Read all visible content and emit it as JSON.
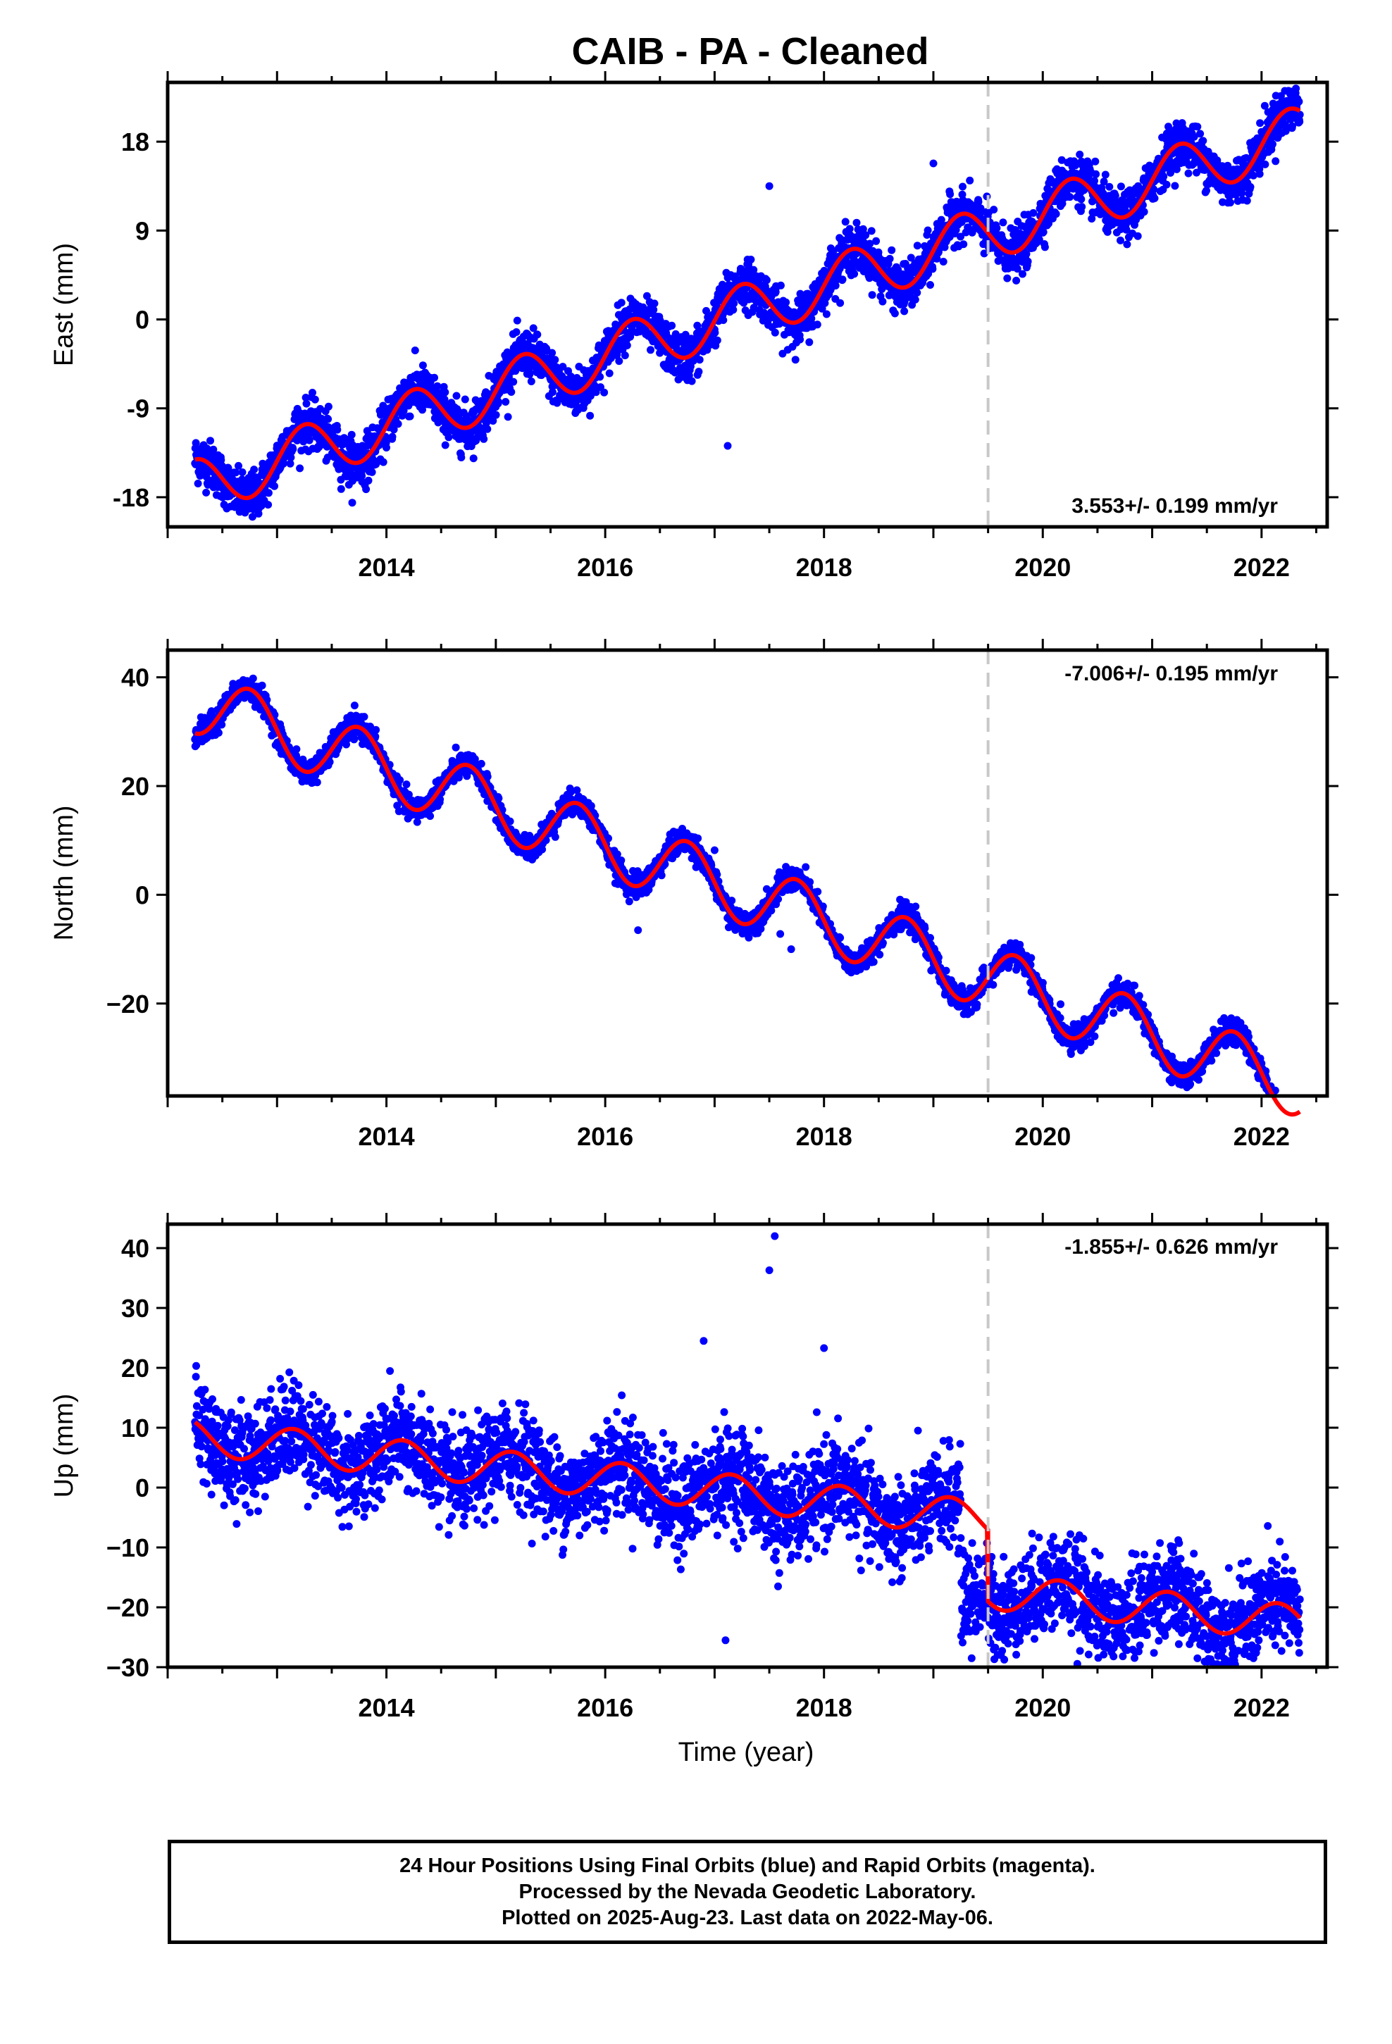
{
  "title": "CAIB  - PA - Cleaned",
  "footer": {
    "lines": [
      "24 Hour Positions Using Final Orbits (blue) and Rapid Orbits (magenta).",
      "Processed by the Nevada Geodetic Laboratory.",
      "Plotted on 2025-Aug-23. Last data on 2022-May-06."
    ]
  },
  "chart_data": [
    {
      "type": "scatter",
      "name": "east",
      "ylabel": "East (mm)",
      "xlim": [
        2012.0,
        2022.6
      ],
      "ylim": [
        -21,
        24
      ],
      "yticks": [
        "18",
        "9",
        "0",
        "-9",
        "-18"
      ],
      "ytick_values": [
        18,
        9,
        0,
        -9,
        -18
      ],
      "xticks": [
        "2014",
        "2016",
        "2018",
        "2020",
        "2022"
      ],
      "xtick_values": [
        2014,
        2016,
        2018,
        2020,
        2022
      ],
      "rate_label": "3.553+/- 0.199 mm/yr",
      "break_epoch": 2019.5,
      "fit": {
        "start": 2012.25,
        "end": 2022.35,
        "offset": -17.0,
        "rate": 3.55,
        "amplitude": 2.8,
        "phase_peak": 0.0,
        "step": 0
      },
      "scatter_sigma": 1.2,
      "point_color": "#0000ff",
      "fit_color": "#ff0000",
      "outliers": [
        [
          2017.5,
          13.5
        ],
        [
          2017.12,
          -12.8
        ],
        [
          2019.0,
          15.8
        ]
      ]
    },
    {
      "type": "scatter",
      "name": "north",
      "ylabel": "North (mm)",
      "xlim": [
        2012.0,
        2022.6
      ],
      "ylim": [
        -37,
        45
      ],
      "yticks": [
        "40",
        "20",
        "0",
        "−20"
      ],
      "ytick_values": [
        40,
        20,
        0,
        -20
      ],
      "xticks": [
        "2014",
        "2016",
        "2018",
        "2020",
        "2022"
      ],
      "xtick_values": [
        2014,
        2016,
        2018,
        2020,
        2022
      ],
      "rate_label": "-7.006+/- 0.195 mm/yr",
      "break_epoch": 2019.5,
      "fit": {
        "start": 2012.25,
        "end": 2022.35,
        "offset": 35.5,
        "rate": -7.0,
        "amplitude": 5.8,
        "phase_peak": 0.5,
        "step": 0
      },
      "scatter_sigma": 1.1,
      "point_color": "#0000ff",
      "fit_color": "#ff0000",
      "outliers": [
        [
          2016.3,
          -6.5
        ],
        [
          2017.6,
          -7.2
        ],
        [
          2017.7,
          -10.0
        ],
        [
          2017.0,
          8.2
        ]
      ]
    },
    {
      "type": "scatter",
      "name": "up",
      "ylabel": "Up (mm)",
      "xlim": [
        2012.0,
        2022.6
      ],
      "ylim": [
        -30,
        44
      ],
      "yticks": [
        "40",
        "30",
        "20",
        "10",
        "0",
        "−10",
        "−20",
        "−30"
      ],
      "ytick_values": [
        40,
        30,
        20,
        10,
        0,
        -10,
        -20,
        -30
      ],
      "xticks": [
        "2014",
        "2016",
        "2018",
        "2020",
        "2022"
      ],
      "xtick_values": [
        2014,
        2016,
        2018,
        2020,
        2022
      ],
      "xlabel": "Time (year)",
      "rate_label": "-1.855+/- 0.626 mm/yr",
      "break_epoch": 2019.5,
      "fit": {
        "start": 2012.25,
        "end": 2022.35,
        "offset": 8.5,
        "rate": -1.9,
        "amplitude": 3.0,
        "phase_peak": 0.9,
        "step": -12
      },
      "scatter_sigma": 4.0,
      "point_color": "#0000ff",
      "fit_color": "#ff0000",
      "outliers": [
        [
          2017.55,
          42.0
        ],
        [
          2017.5,
          36.3
        ],
        [
          2017.1,
          -25.5
        ],
        [
          2018.0,
          23.3
        ],
        [
          2016.9,
          24.5
        ],
        [
          2019.35,
          -28.5
        ],
        [
          2017.58,
          -16.5
        ]
      ]
    }
  ]
}
